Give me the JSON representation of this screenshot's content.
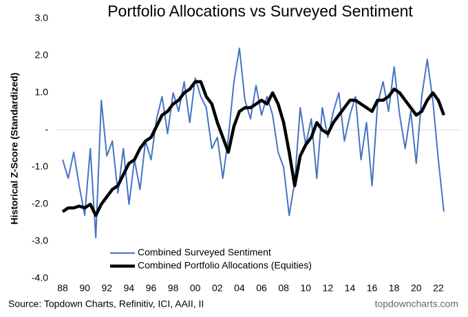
{
  "chart_data": {
    "type": "line",
    "title": "Portfolio Allocations vs Surveyed Sentiment",
    "y_label": "Historical Z-Score (Standardized)",
    "source": "Source: Topdown Charts, Refinitiv, ICI, AAII, II",
    "watermark": "topdowncharts.com",
    "legend": "lower center",
    "x": [
      1988,
      1988.5,
      1989,
      1989.5,
      1990,
      1990.5,
      1991,
      1991.5,
      1992,
      1992.5,
      1993,
      1993.5,
      1994,
      1994.5,
      1995,
      1995.5,
      1996,
      1996.5,
      1997,
      1997.5,
      1998,
      1998.5,
      1999,
      1999.5,
      2000,
      2000.5,
      2001,
      2001.5,
      2002,
      2002.5,
      2003,
      2003.5,
      2004,
      2004.5,
      2005,
      2005.5,
      2006,
      2006.5,
      2007,
      2007.5,
      2008,
      2008.5,
      2009,
      2009.5,
      2010,
      2010.5,
      2011,
      2011.5,
      2012,
      2012.5,
      2013,
      2013.5,
      2014,
      2014.5,
      2015,
      2015.5,
      2016,
      2016.5,
      2017,
      2017.5,
      2018,
      2018.5,
      2019,
      2019.5,
      2020,
      2020.5,
      2021,
      2021.5,
      2022,
      2022.5
    ],
    "series": [
      {
        "name": "Combined Surveyed Sentiment",
        "color": "#4472c4",
        "width": 2,
        "values": [
          -0.8,
          -1.3,
          -0.6,
          -1.5,
          -2.3,
          -0.5,
          -2.9,
          0.8,
          -0.7,
          -0.3,
          -1.7,
          -0.5,
          -2.0,
          -0.8,
          -1.6,
          -0.3,
          -0.8,
          0.3,
          0.9,
          -0.1,
          1.0,
          0.5,
          1.3,
          0.2,
          1.4,
          0.9,
          0.6,
          -0.5,
          -0.2,
          -1.3,
          -0.2,
          1.3,
          2.2,
          0.8,
          0.3,
          1.2,
          0.4,
          0.9,
          0.4,
          -0.6,
          -1.0,
          -2.3,
          -1.4,
          0.6,
          -0.4,
          0.3,
          -1.3,
          0.6,
          -0.2,
          0.5,
          1.0,
          -0.3,
          0.4,
          0.9,
          -0.8,
          0.2,
          -1.5,
          0.7,
          1.3,
          0.5,
          1.7,
          0.4,
          -0.5,
          0.5,
          -0.9,
          0.9,
          1.9,
          0.8,
          -0.8,
          -2.2
        ]
      },
      {
        "name": "Combined Portfolio Allocations (Equities)",
        "color": "#000000",
        "width": 4.5,
        "values": [
          -2.2,
          -2.1,
          -2.1,
          -2.05,
          -2.1,
          -2.0,
          -2.3,
          -2.0,
          -1.8,
          -1.6,
          -1.5,
          -1.2,
          -0.9,
          -0.8,
          -0.5,
          -0.3,
          -0.2,
          0.1,
          0.4,
          0.5,
          0.7,
          0.8,
          1.0,
          1.1,
          1.3,
          1.3,
          0.9,
          0.7,
          0.2,
          -0.2,
          -0.6,
          0.1,
          0.5,
          0.6,
          0.6,
          0.7,
          0.8,
          0.7,
          1.0,
          0.7,
          0.2,
          -0.6,
          -1.5,
          -0.7,
          -0.4,
          -0.2,
          0.2,
          0.0,
          -0.1,
          0.2,
          0.4,
          0.6,
          0.8,
          0.8,
          0.7,
          0.6,
          0.5,
          0.8,
          0.8,
          0.9,
          1.1,
          1.0,
          0.8,
          0.6,
          0.4,
          0.5,
          0.8,
          1.0,
          0.8,
          0.4
        ]
      }
    ],
    "xlim": [
      1987.5,
      2024
    ],
    "xticks": [
      {
        "value": 1988,
        "label": "88"
      },
      {
        "value": 1990,
        "label": "90"
      },
      {
        "value": 1992,
        "label": "92"
      },
      {
        "value": 1994,
        "label": "94"
      },
      {
        "value": 1996,
        "label": "96"
      },
      {
        "value": 1998,
        "label": "98"
      },
      {
        "value": 2000,
        "label": "00"
      },
      {
        "value": 2002,
        "label": "02"
      },
      {
        "value": 2004,
        "label": "04"
      },
      {
        "value": 2006,
        "label": "06"
      },
      {
        "value": 2008,
        "label": "08"
      },
      {
        "value": 2010,
        "label": "10"
      },
      {
        "value": 2012,
        "label": "12"
      },
      {
        "value": 2014,
        "label": "14"
      },
      {
        "value": 2016,
        "label": "16"
      },
      {
        "value": 2018,
        "label": "18"
      },
      {
        "value": 2020,
        "label": "20"
      },
      {
        "value": 2022,
        "label": "22"
      }
    ],
    "ylim": [
      -4,
      3
    ],
    "yticks": [
      {
        "value": 3,
        "label": "3.0"
      },
      {
        "value": 2,
        "label": "2.0"
      },
      {
        "value": 1,
        "label": "1.0"
      },
      {
        "value": 0,
        "label": "-"
      },
      {
        "value": -1,
        "label": "-1.0"
      },
      {
        "value": -2,
        "label": "-2.0"
      },
      {
        "value": -3,
        "label": "-3.0"
      },
      {
        "value": -4,
        "label": "-4.0"
      }
    ],
    "zero_line": true
  }
}
